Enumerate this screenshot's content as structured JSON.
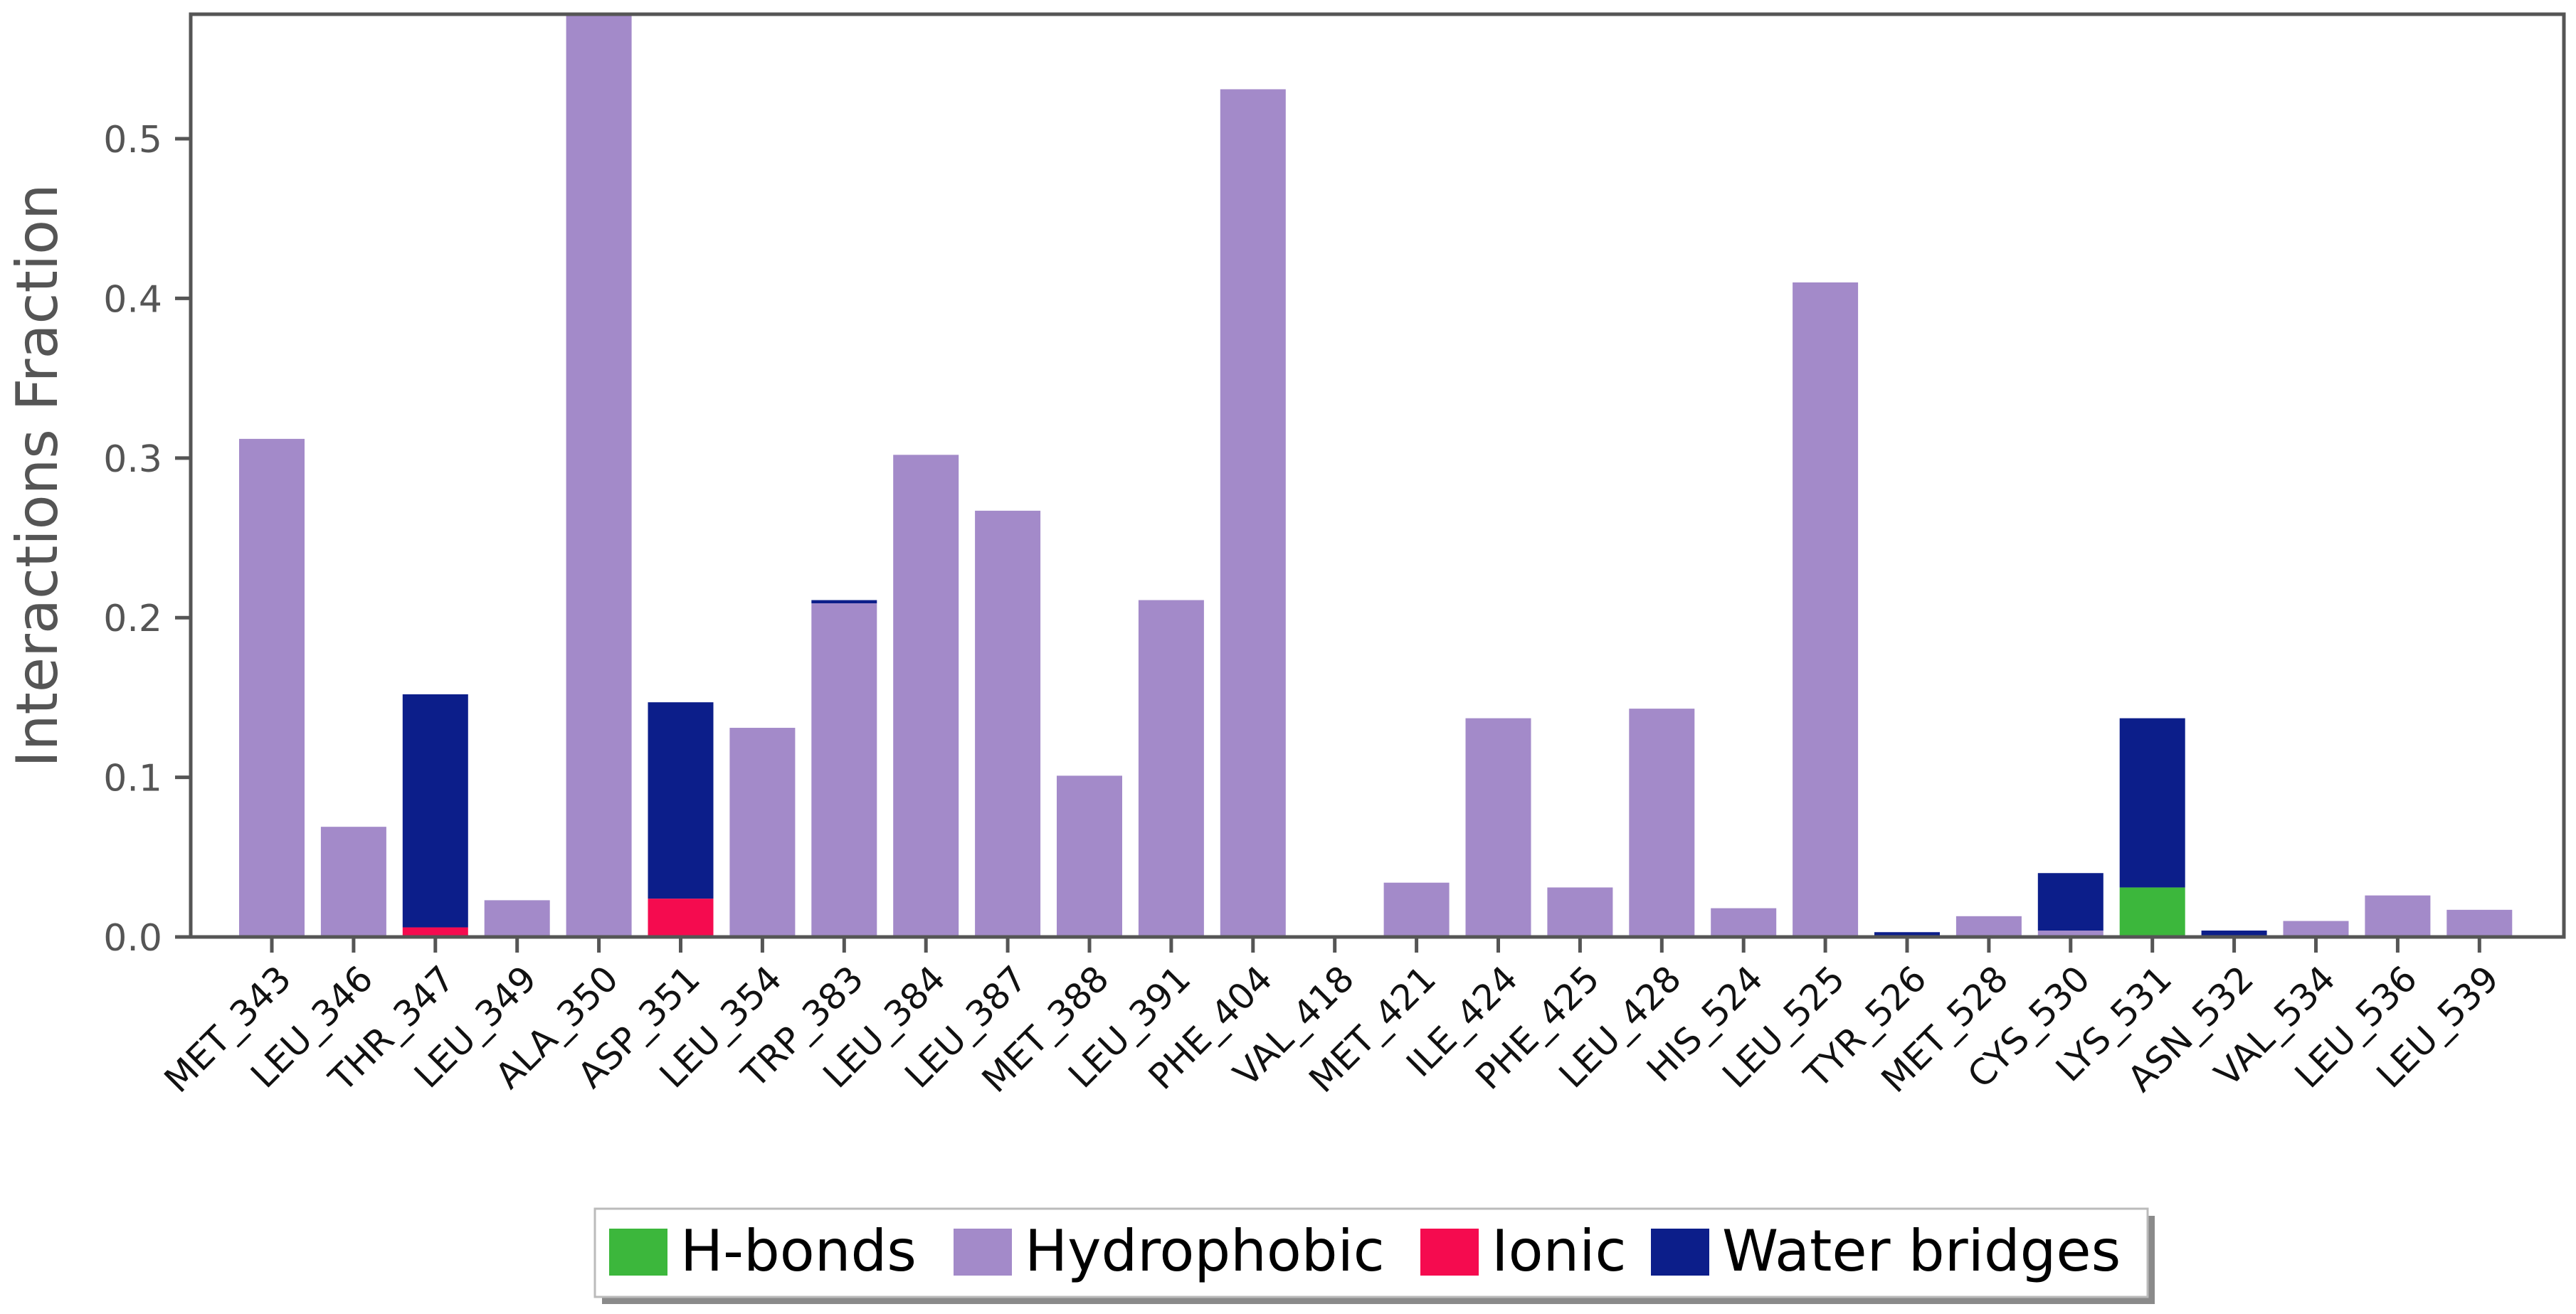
{
  "chart_data": {
    "type": "bar",
    "stacked": true,
    "title": "",
    "xlabel": "",
    "ylabel": "Interactions Fraction",
    "ylim": [
      0,
      0.578
    ],
    "yticks": [
      0.0,
      0.1,
      0.2,
      0.3,
      0.4,
      0.5
    ],
    "ytick_labels": [
      "0.0",
      "0.1",
      "0.2",
      "0.3",
      "0.4",
      "0.5"
    ],
    "grid": false,
    "legend_position": "bottom-center",
    "categories": [
      "MET_343",
      "LEU_346",
      "THR_347",
      "LEU_349",
      "ALA_350",
      "ASP_351",
      "LEU_354",
      "TRP_383",
      "LEU_384",
      "LEU_387",
      "MET_388",
      "LEU_391",
      "PHE_404",
      "VAL_418",
      "MET_421",
      "ILE_424",
      "PHE_425",
      "LEU_428",
      "HIS_524",
      "LEU_525",
      "TYR_526",
      "MET_528",
      "CYS_530",
      "LYS_531",
      "ASN_532",
      "VAL_534",
      "LEU_536",
      "LEU_539"
    ],
    "series": [
      {
        "name": "H-bonds",
        "color": "#3cb73c",
        "values": [
          0,
          0,
          0,
          0,
          0,
          0,
          0,
          0,
          0,
          0,
          0,
          0,
          0,
          0,
          0,
          0,
          0,
          0,
          0,
          0,
          0,
          0,
          0,
          0.031,
          0,
          0,
          0,
          0
        ]
      },
      {
        "name": "Hydrophobic",
        "color": "#a38ac9",
        "values": [
          0.312,
          0.069,
          0,
          0.023,
          0.58,
          0,
          0.131,
          0.209,
          0.302,
          0.267,
          0.101,
          0.211,
          0.531,
          0.001,
          0.034,
          0.137,
          0.031,
          0.143,
          0.018,
          0.41,
          0,
          0.013,
          0.004,
          0,
          0,
          0.01,
          0.026,
          0.017
        ]
      },
      {
        "name": "Ionic",
        "color": "#f50b4f",
        "values": [
          0,
          0,
          0.006,
          0,
          0,
          0.024,
          0,
          0,
          0,
          0,
          0,
          0,
          0,
          0,
          0,
          0,
          0,
          0,
          0,
          0,
          0,
          0,
          0,
          0,
          0,
          0,
          0,
          0
        ]
      },
      {
        "name": "Water bridges",
        "color": "#0c1e8a",
        "values": [
          0,
          0,
          0.146,
          0,
          0,
          0.123,
          0,
          0.002,
          0,
          0,
          0,
          0,
          0,
          0,
          0,
          0,
          0,
          0,
          0,
          0,
          0.003,
          0,
          0.036,
          0.106,
          0.004,
          0,
          0,
          0
        ]
      }
    ]
  }
}
